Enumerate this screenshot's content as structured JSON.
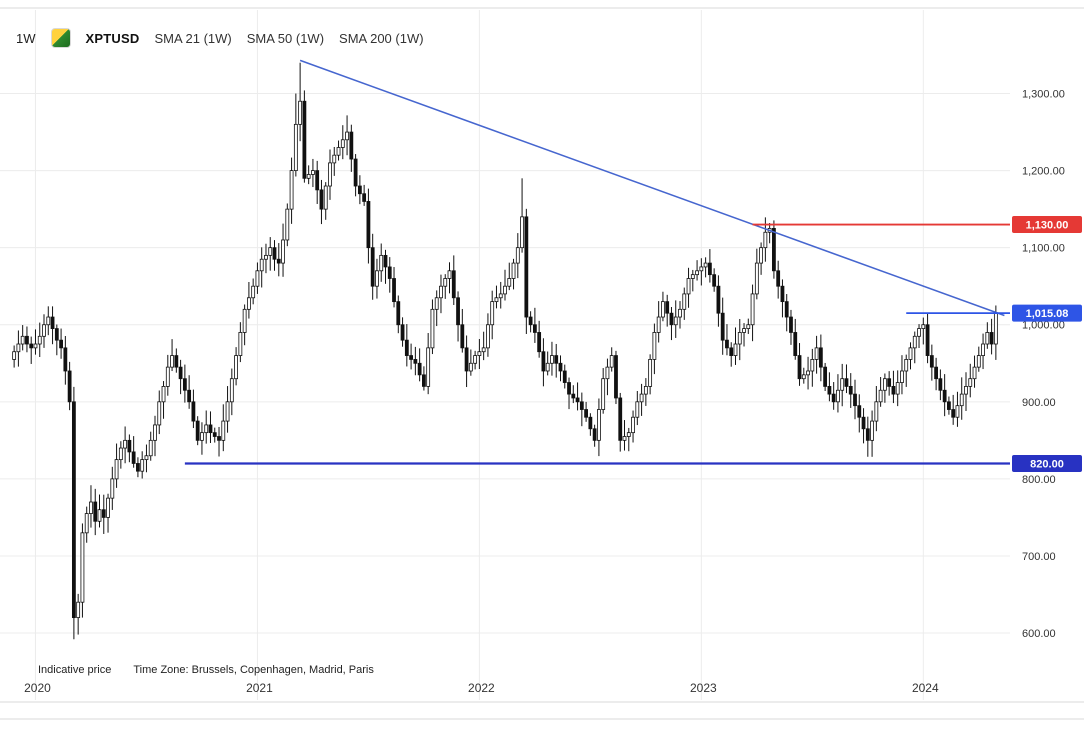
{
  "header": {
    "timeframe": "1W",
    "symbol": "XPTUSD",
    "indicators": [
      "SMA 21 (1W)",
      "SMA 50 (1W)",
      "SMA 200 (1W)"
    ]
  },
  "footer": {
    "indicative": "Indicative price",
    "timezone": "Time Zone: Brussels, Copenhagen, Madrid, Paris"
  },
  "colors": {
    "background": "#ffffff",
    "grid": "#ececec",
    "frame": "#d8d8d8",
    "candle_up": "#ffffff",
    "candle_down": "#111111",
    "candle_outline": "#111111",
    "trendline": "#4666cf",
    "support": "#2832c2",
    "resistance": "#e53935",
    "current": "#2e55e6",
    "axis_text": "#333333",
    "badge_text": "#ffffff"
  },
  "chart_data": {
    "type": "candlestick",
    "symbol": "XPTUSD",
    "interval": "1W",
    "title": "XPTUSD weekly candlestick chart with SMA 21/50/200 legend, descending trendline from 2021 high, resistance 1130, support 820, last price 1015.08",
    "x_ticks": [
      "2020",
      "2021",
      "2022",
      "2023",
      "2024"
    ],
    "x_tick_weeks": [
      5,
      57,
      109,
      161,
      213
    ],
    "y_ticks": [
      600,
      700,
      800,
      900,
      1000,
      1100,
      1200,
      1300
    ],
    "y_range": [
      565,
      1350
    ],
    "first_open": 955,
    "closes": [
      965,
      975,
      985,
      975,
      970,
      975,
      985,
      1000,
      1010,
      995,
      980,
      970,
      940,
      900,
      620,
      640,
      730,
      755,
      770,
      745,
      760,
      750,
      775,
      800,
      825,
      840,
      850,
      835,
      820,
      810,
      825,
      830,
      850,
      870,
      900,
      920,
      945,
      960,
      945,
      930,
      915,
      900,
      875,
      850,
      860,
      870,
      860,
      855,
      850,
      875,
      900,
      930,
      960,
      990,
      1020,
      1035,
      1050,
      1070,
      1085,
      1090,
      1100,
      1085,
      1080,
      1110,
      1150,
      1200,
      1260,
      1290,
      1190,
      1195,
      1200,
      1175,
      1150,
      1180,
      1210,
      1220,
      1230,
      1240,
      1250,
      1215,
      1180,
      1170,
      1160,
      1100,
      1050,
      1070,
      1090,
      1075,
      1060,
      1030,
      1000,
      980,
      960,
      955,
      950,
      935,
      920,
      970,
      1020,
      1035,
      1050,
      1060,
      1070,
      1035,
      1000,
      970,
      940,
      950,
      960,
      965,
      970,
      1000,
      1030,
      1035,
      1040,
      1050,
      1060,
      1080,
      1100,
      1140,
      1010,
      1000,
      990,
      965,
      940,
      950,
      960,
      950,
      940,
      925,
      910,
      905,
      900,
      890,
      880,
      865,
      850,
      890,
      930,
      945,
      960,
      905,
      850,
      855,
      860,
      880,
      900,
      910,
      920,
      955,
      990,
      1010,
      1030,
      1015,
      1000,
      1010,
      1020,
      1040,
      1060,
      1065,
      1070,
      1075,
      1080,
      1065,
      1050,
      1015,
      980,
      970,
      960,
      975,
      990,
      995,
      1000,
      1040,
      1080,
      1100,
      1120,
      1125,
      1070,
      1050,
      1030,
      1010,
      990,
      960,
      930,
      935,
      940,
      955,
      970,
      945,
      920,
      910,
      900,
      915,
      930,
      920,
      910,
      895,
      880,
      865,
      850,
      875,
      900,
      915,
      930,
      920,
      910,
      925,
      940,
      955,
      970,
      985,
      995,
      1000,
      960,
      945,
      930,
      915,
      900,
      890,
      880,
      895,
      910,
      920,
      930,
      945,
      960,
      975,
      990,
      975,
      1015.08
    ],
    "wick_overrides": {
      "14": {
        "low": 592
      },
      "15": {
        "low": 598
      },
      "66": {
        "high": 1300
      },
      "67": {
        "high": 1340
      },
      "119": {
        "high": 1190
      },
      "177": {
        "high": 1132
      },
      "230": {
        "high": 1025
      }
    },
    "levels": [
      {
        "name": "resistance",
        "value": 1130,
        "label": "1,130.00",
        "color_key": "resistance",
        "from_week": 173
      },
      {
        "name": "support",
        "value": 820,
        "label": "820.00",
        "color_key": "support",
        "from_week": 40
      },
      {
        "name": "current-price",
        "value": 1015.08,
        "label": "1,015.08",
        "color_key": "current",
        "from_week": 209
      }
    ],
    "trendline": {
      "from_week": 67,
      "from_value": 1343,
      "to_week": 232,
      "to_value": 1012
    }
  }
}
